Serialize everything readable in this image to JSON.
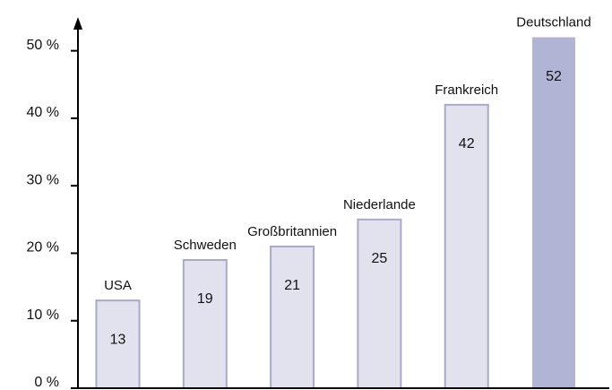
{
  "chart_data": {
    "type": "bar",
    "categories": [
      "USA",
      "Schweden",
      "Großbritannien",
      "Niederlande",
      "Frankreich",
      "Deutschland"
    ],
    "values": [
      13,
      19,
      21,
      25,
      42,
      52
    ],
    "colors": [
      "#e2e2ef",
      "#e2e2ef",
      "#e2e2ef",
      "#e2e2ef",
      "#e2e2ef",
      "#b1b5d5"
    ],
    "ylim": [
      0,
      55
    ],
    "yticks": [
      {
        "value": 0,
        "label": "0 %"
      },
      {
        "value": 10,
        "label": "10 %"
      },
      {
        "value": 20,
        "label": "20 %"
      },
      {
        "value": 30,
        "label": "30 %"
      },
      {
        "value": 40,
        "label": "40 %"
      },
      {
        "value": 50,
        "label": "50 %"
      }
    ]
  }
}
